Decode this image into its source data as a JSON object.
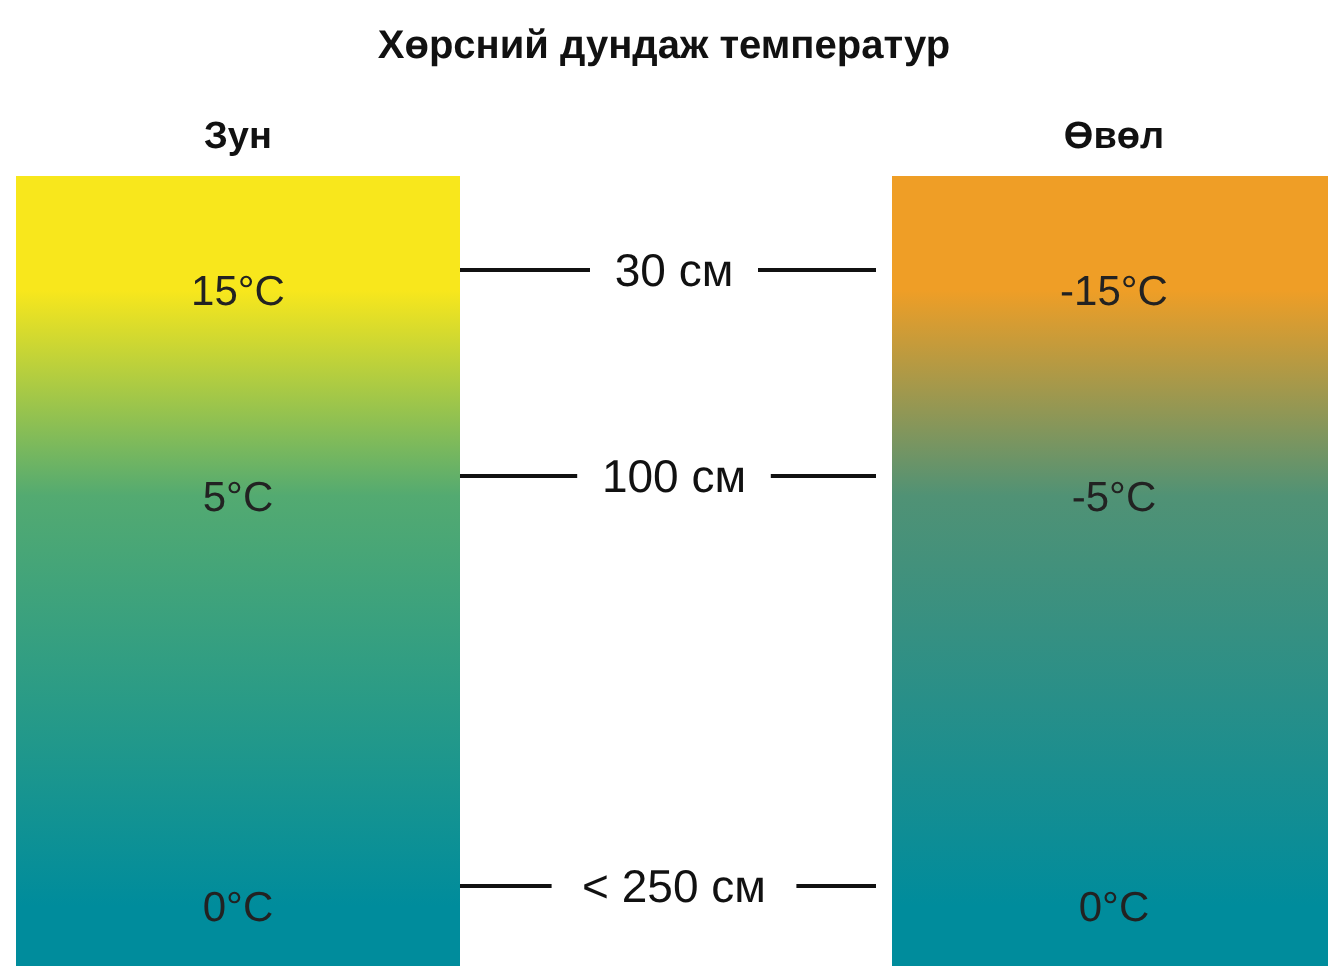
{
  "chart_data": {
    "type": "other",
    "title": "Хөрсний дундаж температур",
    "categories": [
      "30 см",
      "100 см",
      "< 250 см"
    ],
    "series": [
      {
        "name": "Зун",
        "values": [
          15,
          5,
          0
        ],
        "value_labels": [
          "15°C",
          "5°C",
          "0°C"
        ]
      },
      {
        "name": "Өвөл",
        "values": [
          -15,
          -5,
          0
        ],
        "value_labels": [
          "-15°C",
          "-5°C",
          "0°C"
        ]
      }
    ]
  }
}
